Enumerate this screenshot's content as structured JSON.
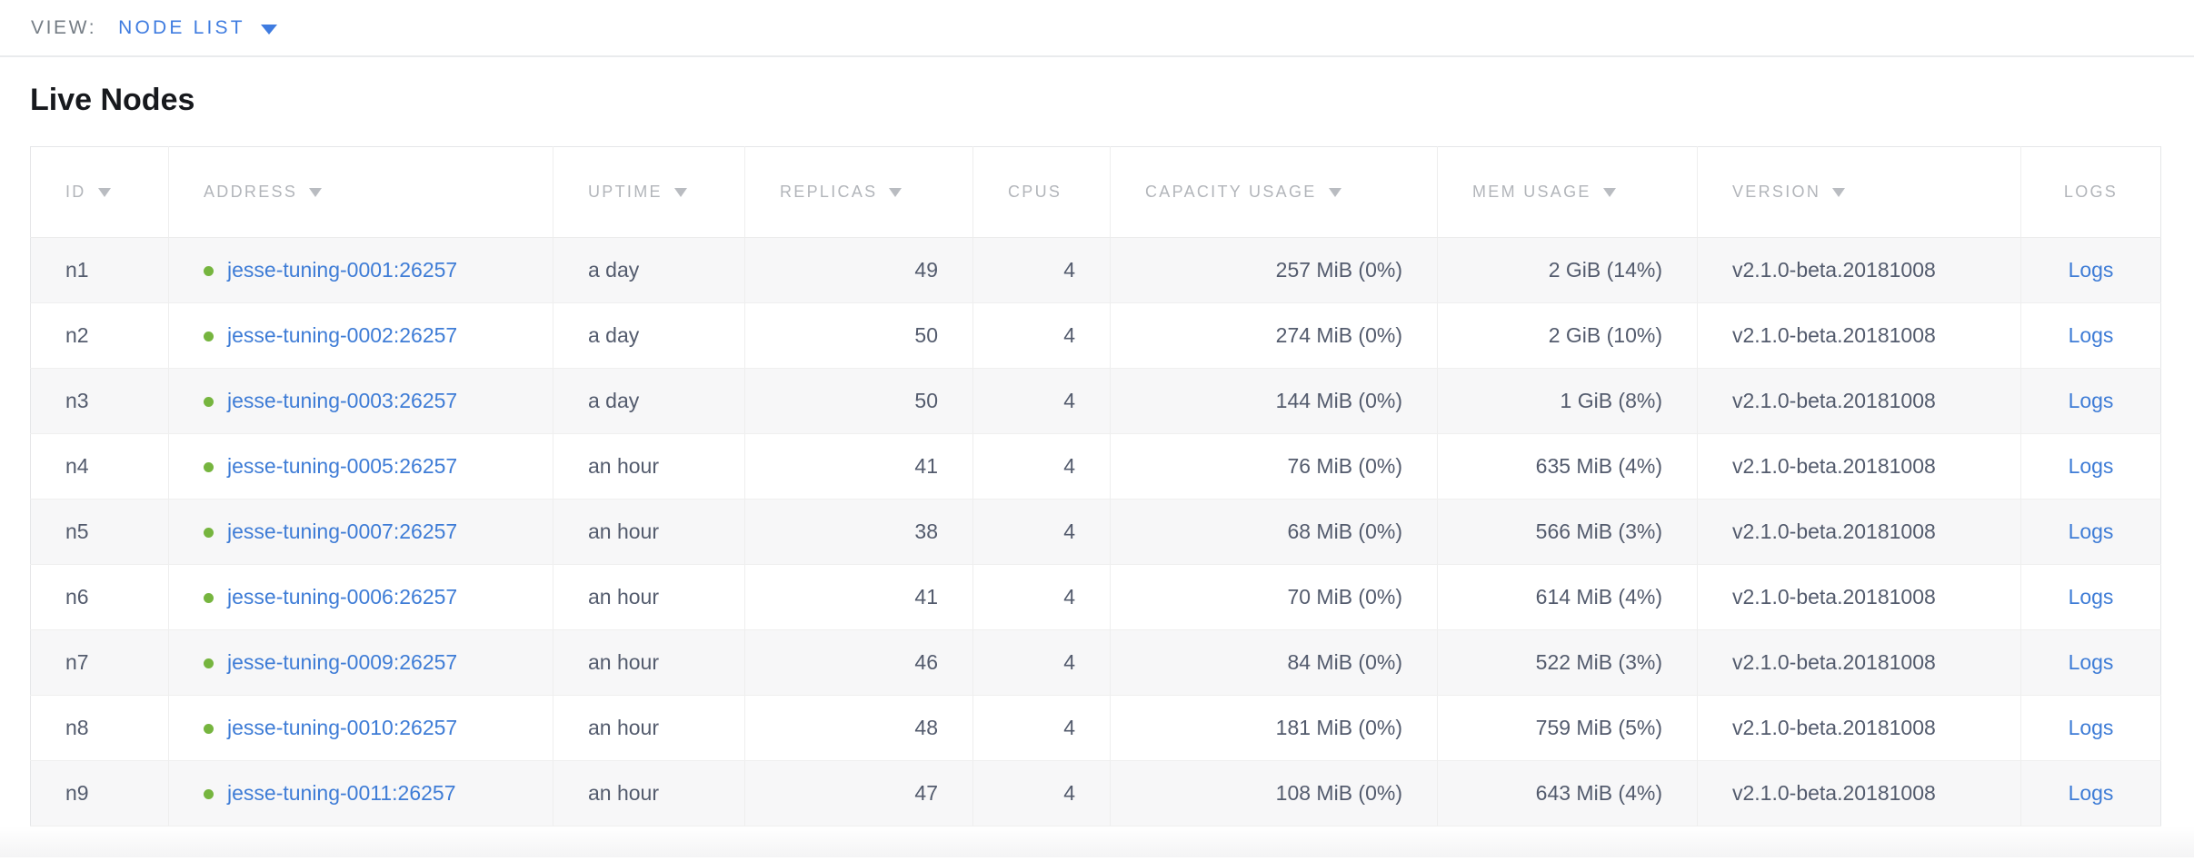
{
  "topbar": {
    "view_label": "VIEW:",
    "view_value": "NODE LIST"
  },
  "page": {
    "title": "Live Nodes"
  },
  "table": {
    "columns": [
      {
        "key": "id",
        "label": "ID",
        "sortable": true
      },
      {
        "key": "address",
        "label": "ADDRESS",
        "sortable": true
      },
      {
        "key": "uptime",
        "label": "UPTIME",
        "sortable": true
      },
      {
        "key": "replicas",
        "label": "REPLICAS",
        "sortable": true
      },
      {
        "key": "cpus",
        "label": "CPUS",
        "sortable": false
      },
      {
        "key": "capacity",
        "label": "CAPACITY USAGE",
        "sortable": true
      },
      {
        "key": "mem",
        "label": "MEM USAGE",
        "sortable": true
      },
      {
        "key": "version",
        "label": "VERSION",
        "sortable": true
      },
      {
        "key": "logs",
        "label": "LOGS",
        "sortable": false
      }
    ],
    "rows": [
      {
        "id": "n1",
        "address": "jesse-tuning-0001:26257",
        "uptime": "a day",
        "replicas": "49",
        "cpus": "4",
        "capacity": "257 MiB (0%)",
        "mem": "2 GiB (14%)",
        "version": "v2.1.0-beta.20181008",
        "logs": "Logs"
      },
      {
        "id": "n2",
        "address": "jesse-tuning-0002:26257",
        "uptime": "a day",
        "replicas": "50",
        "cpus": "4",
        "capacity": "274 MiB (0%)",
        "mem": "2 GiB (10%)",
        "version": "v2.1.0-beta.20181008",
        "logs": "Logs"
      },
      {
        "id": "n3",
        "address": "jesse-tuning-0003:26257",
        "uptime": "a day",
        "replicas": "50",
        "cpus": "4",
        "capacity": "144 MiB (0%)",
        "mem": "1 GiB (8%)",
        "version": "v2.1.0-beta.20181008",
        "logs": "Logs"
      },
      {
        "id": "n4",
        "address": "jesse-tuning-0005:26257",
        "uptime": "an hour",
        "replicas": "41",
        "cpus": "4",
        "capacity": "76 MiB (0%)",
        "mem": "635 MiB (4%)",
        "version": "v2.1.0-beta.20181008",
        "logs": "Logs"
      },
      {
        "id": "n5",
        "address": "jesse-tuning-0007:26257",
        "uptime": "an hour",
        "replicas": "38",
        "cpus": "4",
        "capacity": "68 MiB (0%)",
        "mem": "566 MiB (3%)",
        "version": "v2.1.0-beta.20181008",
        "logs": "Logs"
      },
      {
        "id": "n6",
        "address": "jesse-tuning-0006:26257",
        "uptime": "an hour",
        "replicas": "41",
        "cpus": "4",
        "capacity": "70 MiB (0%)",
        "mem": "614 MiB (4%)",
        "version": "v2.1.0-beta.20181008",
        "logs": "Logs"
      },
      {
        "id": "n7",
        "address": "jesse-tuning-0009:26257",
        "uptime": "an hour",
        "replicas": "46",
        "cpus": "4",
        "capacity": "84 MiB (0%)",
        "mem": "522 MiB (3%)",
        "version": "v2.1.0-beta.20181008",
        "logs": "Logs"
      },
      {
        "id": "n8",
        "address": "jesse-tuning-0010:26257",
        "uptime": "an hour",
        "replicas": "48",
        "cpus": "4",
        "capacity": "181 MiB (0%)",
        "mem": "759 MiB (5%)",
        "version": "v2.1.0-beta.20181008",
        "logs": "Logs"
      },
      {
        "id": "n9",
        "address": "jesse-tuning-0011:26257",
        "uptime": "an hour",
        "replicas": "47",
        "cpus": "4",
        "capacity": "108 MiB (0%)",
        "mem": "643 MiB (4%)",
        "version": "v2.1.0-beta.20181008",
        "logs": "Logs"
      }
    ]
  },
  "colors": {
    "accent_blue": "#3f7ce0",
    "link_blue": "#3e7cd6",
    "status_green": "#76b53f",
    "cell_text": "#535b6d",
    "header_text": "#b2b5ba",
    "stripe_bg": "#f7f7f8"
  }
}
